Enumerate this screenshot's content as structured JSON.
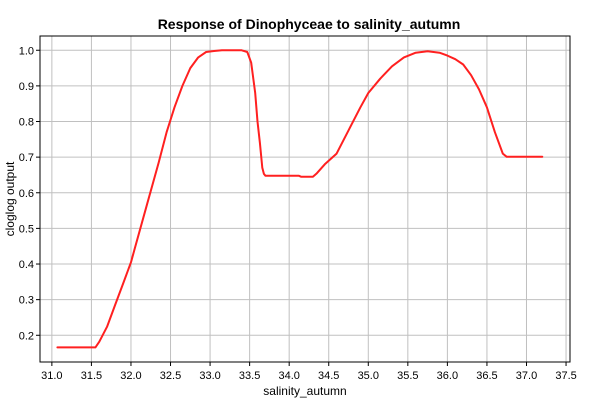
{
  "chart_data": {
    "type": "line",
    "title": "Response of Dinophyceae to salinity_autumn",
    "xlabel": "salinity_autumn",
    "ylabel": "cloglog output",
    "xlim": [
      30.85,
      37.55
    ],
    "ylim": [
      0.125,
      1.04
    ],
    "xticks": [
      31.0,
      31.5,
      32.0,
      32.5,
      33.0,
      33.5,
      34.0,
      34.5,
      35.0,
      35.5,
      36.0,
      36.5,
      37.0,
      37.5
    ],
    "xtick_labels": [
      "31.0",
      "31.5",
      "32.0",
      "32.5",
      "33.0",
      "33.5",
      "34.0",
      "34.5",
      "35.0",
      "35.5",
      "36.0",
      "36.5",
      "37.0",
      "37.5"
    ],
    "yticks": [
      0.2,
      0.3,
      0.4,
      0.5,
      0.6,
      0.7,
      0.8,
      0.9,
      1.0
    ],
    "ytick_labels": [
      "0.2",
      "0.3",
      "0.4",
      "0.5",
      "0.6",
      "0.7",
      "0.8",
      "0.9",
      "1.0"
    ],
    "grid": true,
    "series": [
      {
        "color": "#ff2020",
        "x": [
          31.07,
          31.3,
          31.55,
          31.6,
          31.7,
          31.8,
          31.9,
          32.0,
          32.05,
          32.2,
          32.35,
          32.45,
          32.55,
          32.65,
          32.75,
          32.85,
          32.95,
          33.05,
          33.15,
          33.2,
          33.3,
          33.4,
          33.47,
          33.52,
          33.57,
          33.6,
          33.63,
          33.66,
          33.68,
          33.7,
          33.72,
          33.8,
          34.0,
          34.12,
          34.15,
          34.3,
          34.35,
          34.45,
          34.6,
          34.75,
          34.9,
          35.0,
          35.15,
          35.3,
          35.45,
          35.6,
          35.75,
          35.9,
          36.0,
          36.1,
          36.2,
          36.3,
          36.4,
          36.5,
          36.6,
          36.7,
          36.75,
          37.0,
          37.2
        ],
        "y": [
          0.166,
          0.166,
          0.166,
          0.182,
          0.225,
          0.285,
          0.345,
          0.405,
          0.445,
          0.565,
          0.685,
          0.77,
          0.84,
          0.9,
          0.95,
          0.98,
          0.995,
          0.998,
          1.0,
          1.0,
          1.0,
          1.0,
          0.995,
          0.965,
          0.88,
          0.8,
          0.74,
          0.67,
          0.653,
          0.648,
          0.648,
          0.648,
          0.648,
          0.648,
          0.645,
          0.645,
          0.655,
          0.68,
          0.71,
          0.775,
          0.84,
          0.88,
          0.92,
          0.955,
          0.98,
          0.993,
          0.997,
          0.993,
          0.985,
          0.975,
          0.96,
          0.93,
          0.89,
          0.84,
          0.77,
          0.71,
          0.701,
          0.701,
          0.701
        ]
      }
    ]
  }
}
